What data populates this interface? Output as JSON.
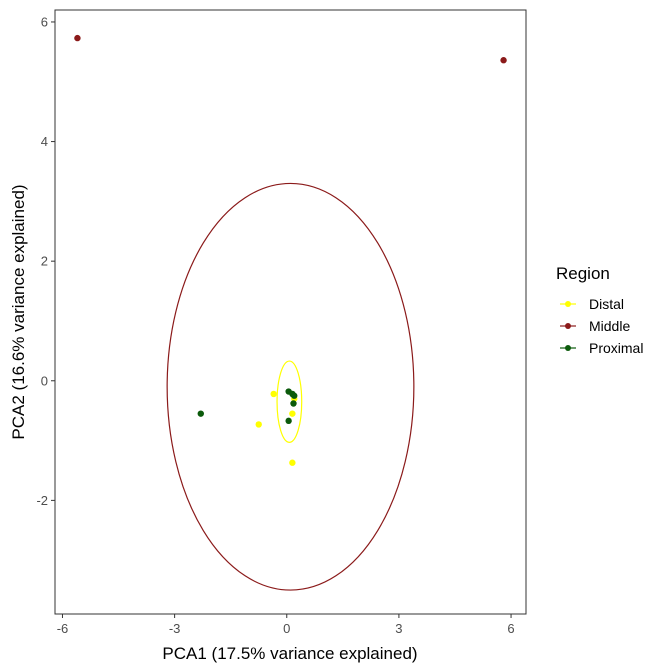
{
  "chart_data": {
    "type": "scatter",
    "xlabel": "PCA1 (17.5% variance explained)",
    "ylabel": "PCA2 (16.6% variance explained)",
    "xlim": [
      -6.2,
      6.4
    ],
    "ylim": [
      -3.9,
      6.2
    ],
    "x_ticks": [
      -6,
      -3,
      0,
      3,
      6
    ],
    "y_ticks": [
      -2,
      0,
      2,
      4,
      6
    ],
    "x_tick_labels": [
      "-6",
      "-3",
      "0",
      "3",
      "6"
    ],
    "y_tick_labels": [
      "-2",
      "0",
      "2",
      "4",
      "6"
    ],
    "grid": false,
    "legend": {
      "title": "Region",
      "placement": "right",
      "entries": [
        "Distal",
        "Middle",
        "Proximal"
      ]
    },
    "series": [
      {
        "name": "Distal",
        "color": "#FFFF00",
        "points": [
          [
            -0.35,
            -0.22
          ],
          [
            -0.75,
            -0.73
          ],
          [
            0.15,
            -0.55
          ],
          [
            0.15,
            -1.37
          ],
          [
            0.2,
            -0.3
          ]
        ],
        "ellipse": {
          "center": [
            0.07,
            -0.35
          ],
          "semi_axis_x": 0.33,
          "semi_axis_y": 0.68
        }
      },
      {
        "name": "Middle",
        "color": "#8B1A1A",
        "points": [
          [
            -5.6,
            5.73
          ],
          [
            5.8,
            5.36
          ]
        ],
        "ellipse": {
          "center": [
            0.1,
            -0.1
          ],
          "semi_axis_x": 3.3,
          "semi_axis_y": 3.4
        }
      },
      {
        "name": "Proximal",
        "color": "#0B5A0B",
        "points": [
          [
            -2.3,
            -0.55
          ],
          [
            0.05,
            -0.18
          ],
          [
            0.15,
            -0.22
          ],
          [
            0.2,
            -0.25
          ],
          [
            0.18,
            -0.38
          ],
          [
            0.05,
            -0.67
          ]
        ]
      }
    ]
  }
}
